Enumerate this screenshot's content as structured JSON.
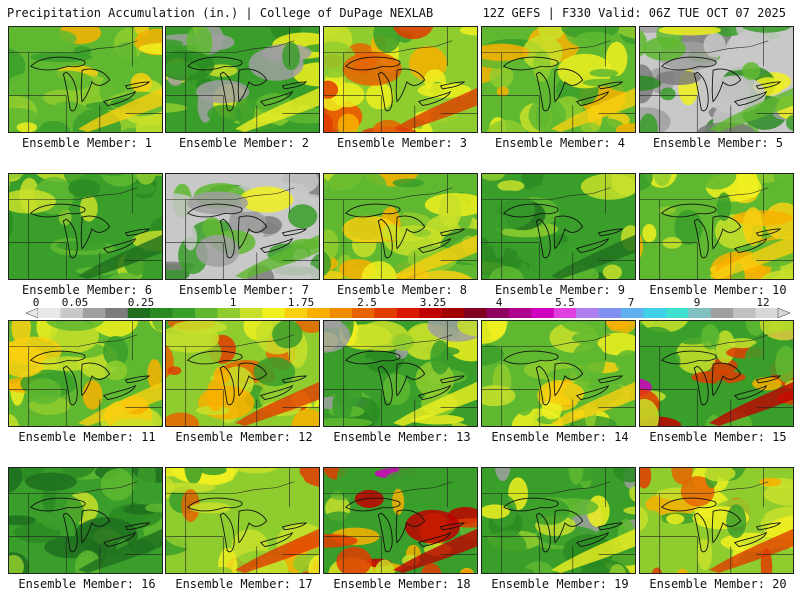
{
  "header": {
    "left": "Precipitation Accumulation (in.) | College of DuPage NEXLAB",
    "right": "12Z GEFS | F330 Valid: 06Z TUE OCT 07 2025"
  },
  "colorbar": {
    "labels": [
      "0",
      "0.05",
      "0.25",
      "1",
      "1.75",
      "2.5",
      "3.25",
      "4",
      "5.5",
      "7",
      "9",
      "12"
    ],
    "colors": [
      "#e8e8e8",
      "#c8c8c8",
      "#a0a0a0",
      "#7c7c7c",
      "#1e6e1e",
      "#2a8a22",
      "#3a9e2a",
      "#5fb830",
      "#8fcc2e",
      "#c8e02a",
      "#f0f020",
      "#f8d010",
      "#f8b000",
      "#f08c00",
      "#e86400",
      "#e03c00",
      "#d81800",
      "#c00000",
      "#a00000",
      "#800020",
      "#900060",
      "#b00090",
      "#d000c0",
      "#e040e0",
      "#b080f0",
      "#8090f0",
      "#60b0f0",
      "#40d0e8",
      "#40e0d0",
      "#80c0c0",
      "#a0a0a0",
      "#c0c0c0",
      "#d8d8d8"
    ]
  },
  "members": [
    {
      "label": "Ensemble Member: 1",
      "tone": "warm"
    },
    {
      "label": "Ensemble Member: 2",
      "tone": "mixed"
    },
    {
      "label": "Ensemble Member: 3",
      "tone": "hot"
    },
    {
      "label": "Ensemble Member: 4",
      "tone": "warm"
    },
    {
      "label": "Ensemble Member: 5",
      "tone": "grey"
    },
    {
      "label": "Ensemble Member: 6",
      "tone": "green"
    },
    {
      "label": "Ensemble Member: 7",
      "tone": "grey"
    },
    {
      "label": "Ensemble Member: 8",
      "tone": "warm"
    },
    {
      "label": "Ensemble Member: 9",
      "tone": "green"
    },
    {
      "label": "Ensemble Member: 10",
      "tone": "warm"
    },
    {
      "label": "Ensemble Member: 11",
      "tone": "warm"
    },
    {
      "label": "Ensemble Member: 12",
      "tone": "hot"
    },
    {
      "label": "Ensemble Member: 13",
      "tone": "mixed"
    },
    {
      "label": "Ensemble Member: 14",
      "tone": "warm"
    },
    {
      "label": "Ensemble Member: 15",
      "tone": "magenta"
    },
    {
      "label": "Ensemble Member: 16",
      "tone": "green"
    },
    {
      "label": "Ensemble Member: 17",
      "tone": "hot"
    },
    {
      "label": "Ensemble Member: 18",
      "tone": "magenta"
    },
    {
      "label": "Ensemble Member: 19",
      "tone": "mixed"
    },
    {
      "label": "Ensemble Member: 20",
      "tone": "hot"
    }
  ]
}
